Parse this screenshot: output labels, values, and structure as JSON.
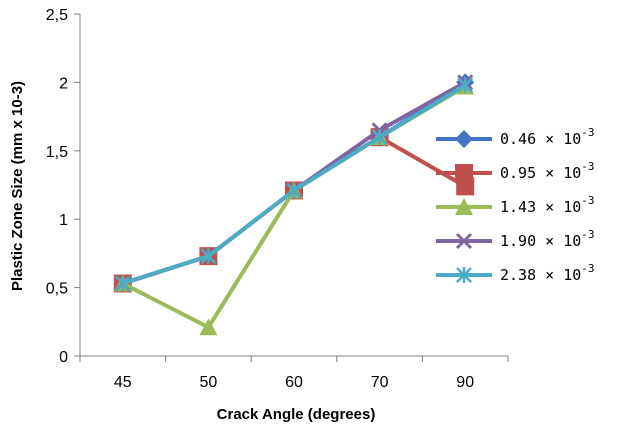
{
  "chart_data": {
    "type": "line",
    "title": "",
    "xlabel": "Crack Angle (degrees)",
    "ylabel": "Plastic Zone Size (mm x 10-3)",
    "categories": [
      "45",
      "50",
      "60",
      "70",
      "90"
    ],
    "y_ticks": [
      "0",
      "0,5",
      "1",
      "1,5",
      "2",
      "2,5"
    ],
    "y_tick_values": [
      0,
      0.5,
      1,
      1.5,
      2,
      2.5
    ],
    "ylim": [
      0,
      2.5
    ],
    "grid": false,
    "legend_position": "right",
    "series": [
      {
        "name": "0.46 × 10-3",
        "base": "0.46",
        "mult": "×",
        "power": "10",
        "exp": "-3",
        "color": "#4472C4",
        "marker": "diamond",
        "values": [
          0.53,
          0.73,
          1.21,
          1.6,
          2.0
        ]
      },
      {
        "name": "0.95 × 10-3",
        "base": "0.95",
        "mult": "×",
        "power": "10",
        "exp": "-3",
        "color": "#C0504D",
        "marker": "square",
        "values": [
          0.53,
          0.73,
          1.21,
          1.6,
          1.24
        ]
      },
      {
        "name": "1.43 × 10-3",
        "base": "1.43",
        "mult": "×",
        "power": "10",
        "exp": "-3",
        "color": "#9BBB59",
        "marker": "triangle",
        "values": [
          0.53,
          0.21,
          1.21,
          1.6,
          1.97
        ]
      },
      {
        "name": "1.90 × 10-3",
        "base": "1.90",
        "mult": "×",
        "power": "10",
        "exp": "-3",
        "color": "#8064A2",
        "marker": "x",
        "values": [
          0.53,
          0.73,
          1.21,
          1.65,
          2.0
        ]
      },
      {
        "name": "2.38 × 10-3",
        "base": "2.38",
        "mult": "×",
        "power": "10",
        "exp": "-3",
        "color": "#4BACC6",
        "marker": "star",
        "values": [
          0.53,
          0.73,
          1.21,
          1.6,
          1.98
        ]
      }
    ]
  }
}
